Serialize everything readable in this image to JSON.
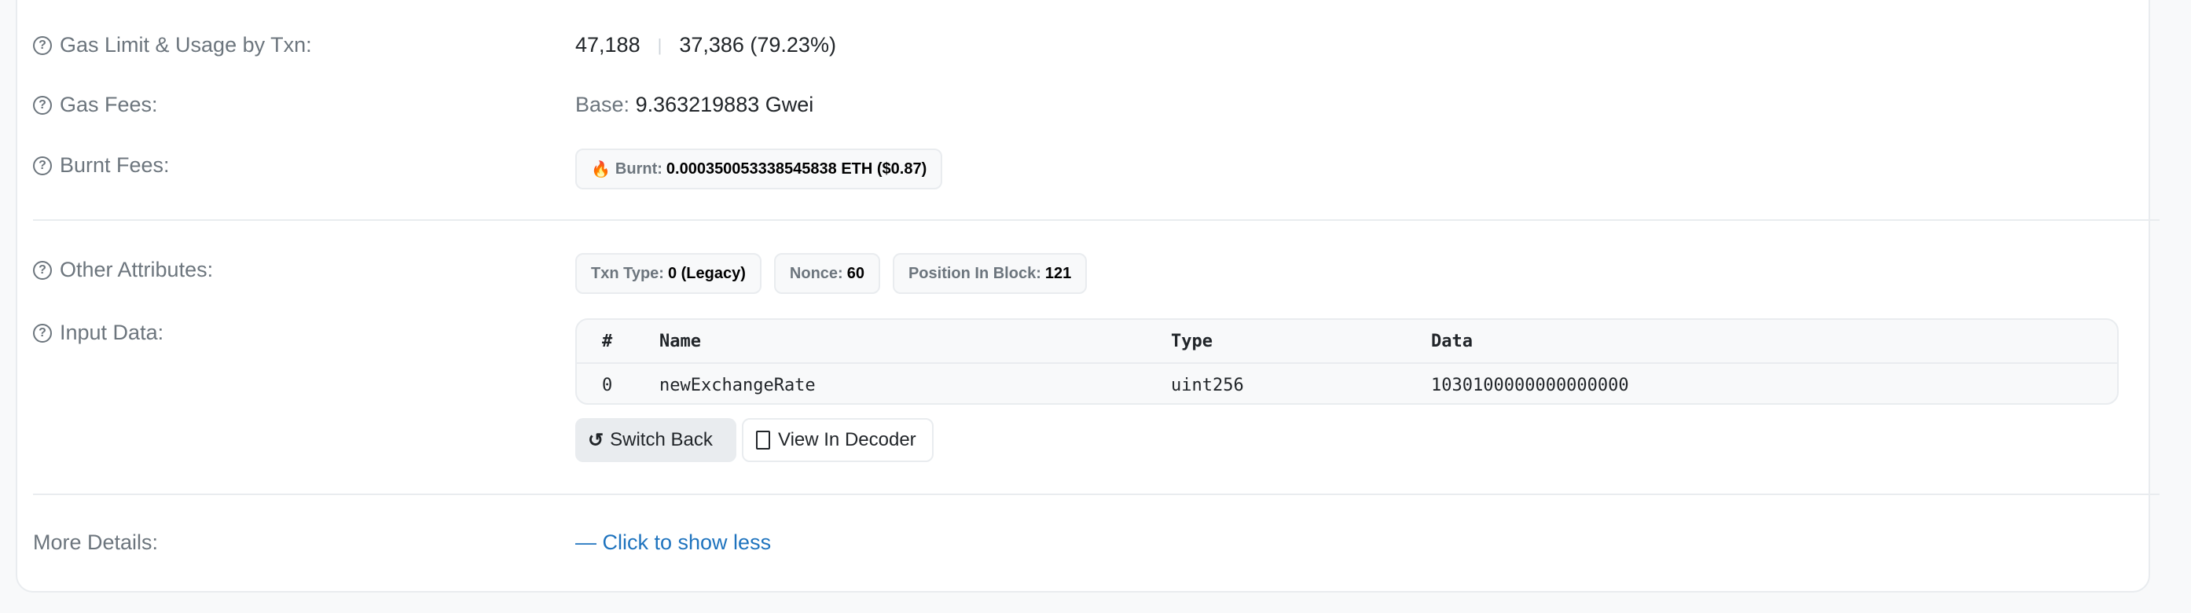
{
  "rows": {
    "gas_limit": {
      "label": "Gas Limit & Usage by Txn:",
      "limit": "47,188",
      "separator": "|",
      "usage": "37,386 (79.23%)"
    },
    "gas_fees": {
      "label": "Gas Fees:",
      "base_label": "Base:",
      "base_value": "9.363219883 Gwei"
    },
    "burnt_fees": {
      "label": "Burnt Fees:",
      "badge_label": "Burnt:",
      "badge_value": "0.000350053338545838 ETH ($0.87)"
    },
    "other_attributes": {
      "label": "Other Attributes:",
      "badges": [
        {
          "key": "Txn Type:",
          "value": "0 (Legacy)"
        },
        {
          "key": "Nonce:",
          "value": "60"
        },
        {
          "key": "Position In Block:",
          "value": "121"
        }
      ]
    },
    "input_data": {
      "label": "Input Data:",
      "columns": [
        "#",
        "Name",
        "Type",
        "Data"
      ],
      "rows": [
        [
          "0",
          "newExchangeRate",
          "uint256",
          "1030100000000000000"
        ]
      ],
      "switch_back": "Switch Back",
      "view_decoder": "View In Decoder"
    },
    "more_details": {
      "label": "More Details:",
      "link": "— Click to show less"
    }
  },
  "colors": {
    "link": "#1e73be",
    "label": "#6c757d"
  }
}
